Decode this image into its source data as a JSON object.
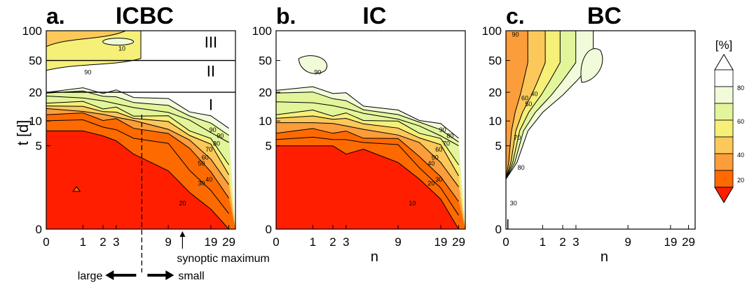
{
  "colors": {
    "bands": [
      "#ff1f00",
      "#ff6a00",
      "#fb9d3a",
      "#fcc85a",
      "#f6ef78",
      "#e3f59a",
      "#f1fbd9"
    ],
    "outline": "#000000"
  },
  "chart_data": {
    "type": "heatmap",
    "shared": {
      "ylabel": "t [d]",
      "xlabel": "n",
      "x_ticks": [
        "0",
        "1",
        "2",
        "3",
        "9",
        "19",
        "29"
      ],
      "y_ticks": [
        "0",
        "5",
        "10",
        "20",
        "50",
        "100"
      ],
      "colorbar": {
        "unit": "[%]",
        "ticks": [
          "20",
          "40",
          "60",
          "80"
        ],
        "levels": [
          10,
          20,
          30,
          40,
          50,
          60,
          70,
          80,
          90
        ]
      }
    },
    "panels": [
      {
        "letter": "a.",
        "title": "ICBC",
        "regions": [
          "III",
          "II",
          "I"
        ],
        "region_bounds_days": [
          20,
          50
        ],
        "contour_labels": [
          "90",
          "90",
          "90",
          "80",
          "70",
          "60",
          "50",
          "40",
          "30",
          "20",
          "10"
        ],
        "annotations": {
          "synoptic": "synoptic maximum",
          "large": "large",
          "small": "small"
        },
        "contour_t_days": {
          "n": [
            0,
            1,
            2,
            3,
            5,
            9,
            14,
            19,
            29
          ],
          "p10": [
            8,
            8,
            7,
            6,
            4.5,
            3.5,
            2.2,
            1.2,
            0
          ],
          "p30": [
            13,
            12,
            11,
            10,
            9,
            7,
            5,
            3.3,
            2
          ],
          "p60": [
            17,
            16,
            15,
            14,
            12.5,
            11,
            8.5,
            6,
            4
          ],
          "p90": [
            22,
            22,
            21,
            20,
            19,
            17,
            14,
            11,
            9
          ]
        }
      },
      {
        "letter": "b.",
        "title": "IC",
        "contour_labels": [
          "90",
          "90",
          "80",
          "70",
          "60",
          "50",
          "40",
          "30",
          "20",
          "10"
        ],
        "contour_t_days": {
          "n": [
            0,
            1,
            2,
            3,
            5,
            9,
            14,
            19,
            29
          ],
          "p10": [
            5,
            5,
            5,
            4.5,
            4.8,
            4,
            3,
            1.8,
            0
          ],
          "p30": [
            8,
            8,
            8,
            7.5,
            7,
            6,
            4.5,
            3,
            1.8
          ],
          "p60": [
            13,
            13,
            12.5,
            12,
            11,
            9.5,
            8,
            6,
            4
          ],
          "p90": [
            24,
            23,
            21,
            19,
            16,
            13,
            11,
            9,
            7
          ]
        }
      },
      {
        "letter": "c.",
        "title": "BC",
        "contour_labels": [
          "90",
          "80",
          "70",
          "60",
          "50",
          "40",
          "30"
        ],
        "contour_t_days": {
          "n": [
            0,
            0.3,
            0.6,
            1,
            1.5,
            2,
            3,
            5
          ],
          "p90": [
            3,
            4,
            8,
            13,
            16,
            19,
            30,
            48
          ]
        }
      }
    ]
  }
}
